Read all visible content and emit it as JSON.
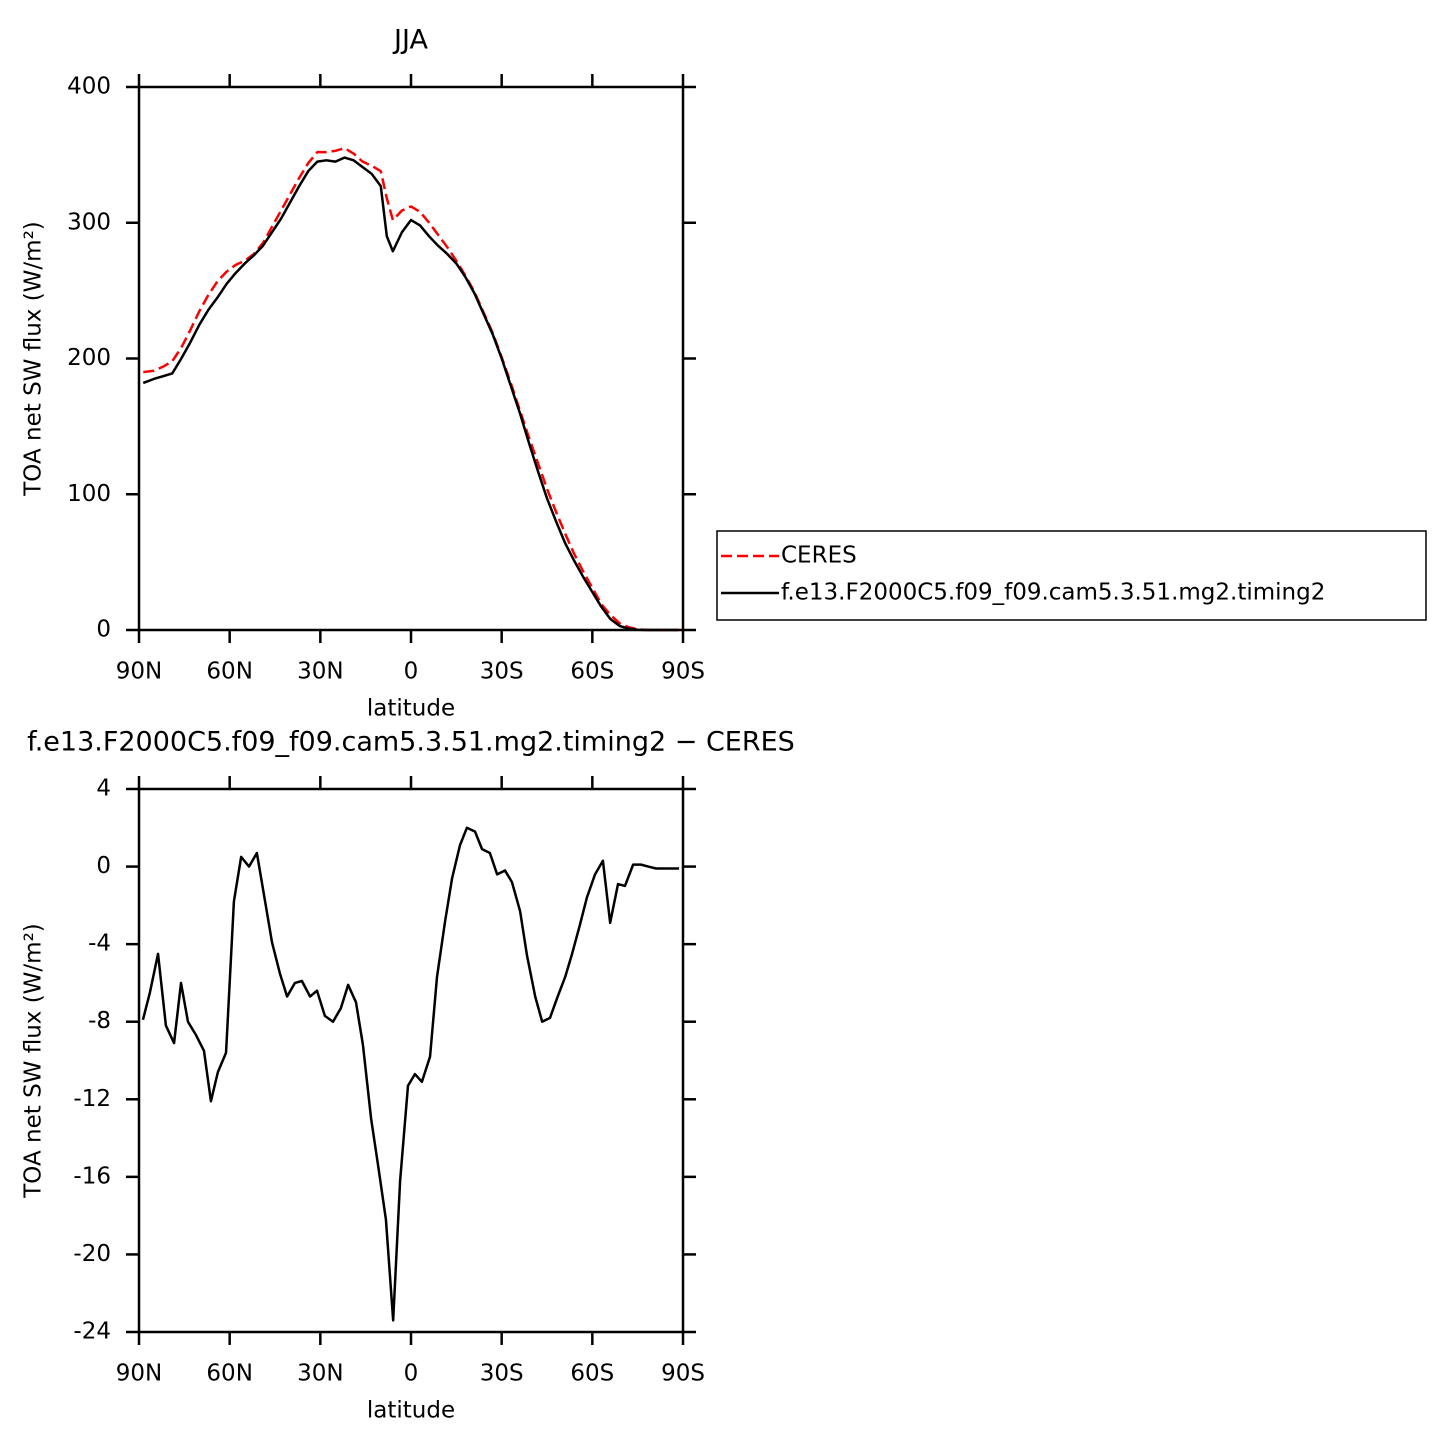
{
  "chart_data": [
    {
      "type": "line",
      "title": "JJA",
      "xlabel": "latitude",
      "ylabel": "TOA net SW flux (W/m²)",
      "x": [
        88.6,
        85,
        82,
        79,
        76,
        73,
        70,
        67,
        64,
        61,
        58,
        55,
        52,
        49,
        46,
        43,
        40,
        37,
        34,
        31,
        28,
        25,
        22,
        19,
        16,
        13,
        10,
        8,
        6,
        3,
        0,
        -3,
        -6,
        -9,
        -12,
        -15,
        -18,
        -21,
        -24,
        -27,
        -30,
        -33,
        -36,
        -39,
        -42,
        -45,
        -48,
        -51,
        -54,
        -57,
        -60,
        -63,
        -66,
        -69,
        -72,
        -75,
        -78,
        -81,
        -84,
        -87,
        -88.6
      ],
      "series": [
        {
          "name": "CERES",
          "color": "#ff0000",
          "linestyle": "dashed",
          "values": [
            190,
            191,
            194,
            198,
            208,
            221,
            235,
            247,
            257,
            264,
            269,
            272,
            277,
            285,
            297,
            309,
            321,
            333,
            344,
            352,
            352,
            353,
            355,
            351,
            345,
            342,
            338,
            318,
            302,
            309,
            312,
            308,
            300,
            291,
            282,
            272,
            261,
            249,
            234,
            219,
            201,
            182,
            162,
            142,
            123,
            104,
            87,
            71,
            56,
            43,
            31,
            19,
            11,
            5,
            2,
            0.5,
            0,
            0,
            0,
            0,
            0
          ]
        },
        {
          "name": "f.e13.F2000C5.f09_f09.cam5.3.51.mg2.timing2",
          "color": "#000000",
          "linestyle": "solid",
          "values": [
            182,
            185,
            187,
            189,
            200,
            212,
            225,
            236,
            245,
            255,
            263,
            270,
            276,
            283,
            293,
            303,
            315,
            327,
            338,
            345,
            346,
            345,
            348,
            346,
            341,
            336,
            327,
            290,
            279,
            293,
            302,
            298,
            290,
            283,
            277,
            270,
            260,
            248,
            233,
            218,
            200,
            180,
            160,
            138,
            117,
            97,
            80,
            64,
            51,
            39,
            28,
            17,
            8,
            3,
            1,
            0.2,
            0,
            0,
            0,
            0,
            0
          ]
        }
      ],
      "xlim": [
        90,
        -90
      ],
      "xticks": [
        {
          "value": 90,
          "label": "90N"
        },
        {
          "value": 60,
          "label": "60N"
        },
        {
          "value": 30,
          "label": "30N"
        },
        0,
        {
          "value": -30,
          "label": "30S"
        },
        {
          "value": -60,
          "label": "60S"
        },
        {
          "value": -90,
          "label": "90S"
        }
      ],
      "ylim": [
        0,
        400
      ],
      "yticks": [
        0,
        100,
        200,
        300,
        400
      ],
      "legend": "right"
    },
    {
      "type": "line",
      "title": "f.e13.F2000C5.f09_f09.cam5.3.51.mg2.timing2 − CERES",
      "xlabel": "latitude",
      "ylabel": "TOA net SW flux (W/m²)",
      "x": [
        88.7,
        86.4,
        83.7,
        81.1,
        78.4,
        76.1,
        73.8,
        71.1,
        68.5,
        66.2,
        63.9,
        61.2,
        58.6,
        56.2,
        53.6,
        51.0,
        48.6,
        46.0,
        43.4,
        41.0,
        38.4,
        36.1,
        33.4,
        31.1,
        28.5,
        25.8,
        23.2,
        20.8,
        18.2,
        15.9,
        13.2,
        10.9,
        8.3,
        5.9,
        3.6,
        1.0,
        -1.3,
        -3.6,
        -6.3,
        -8.6,
        -11.3,
        -13.6,
        -16.2,
        -18.5,
        -21.2,
        -23.5,
        -26.1,
        -28.5,
        -31.1,
        -33.4,
        -36.1,
        -38.4,
        -41.1,
        -43.4,
        -46.0,
        -48.3,
        -51.0,
        -53.3,
        -55.9,
        -58.2,
        -60.9,
        -63.5,
        -65.9,
        -68.5,
        -70.8,
        -73.5,
        -76.1,
        -78.5,
        -81.1,
        -83.4,
        -86.0,
        -88.7
      ],
      "series": [
        {
          "color": "#000000",
          "linestyle": "solid",
          "values": [
            -7.9,
            -6.5,
            -4.5,
            -8.2,
            -9.1,
            -6.0,
            -8.0,
            -8.7,
            -9.5,
            -12.1,
            -10.6,
            -9.6,
            -1.8,
            0.5,
            0.0,
            0.7,
            -1.5,
            -3.9,
            -5.5,
            -6.7,
            -6.0,
            -5.9,
            -6.7,
            -6.4,
            -7.7,
            -8.0,
            -7.3,
            -6.1,
            -7.0,
            -9.2,
            -13.0,
            -15.4,
            -18.2,
            -23.4,
            -16.2,
            -11.3,
            -10.7,
            -11.1,
            -9.8,
            -5.7,
            -2.8,
            -0.6,
            1.1,
            2.0,
            1.8,
            0.9,
            0.7,
            -0.4,
            -0.2,
            -0.8,
            -2.3,
            -4.6,
            -6.7,
            -8.0,
            -7.8,
            -6.8,
            -5.7,
            -4.5,
            -3.0,
            -1.6,
            -0.4,
            0.3,
            -2.9,
            -0.9,
            -1.0,
            0.1,
            0.1,
            0.0,
            -0.1,
            -0.1,
            -0.1,
            -0.1
          ]
        }
      ],
      "xlim": [
        90,
        -90
      ],
      "xticks": [
        {
          "value": 90,
          "label": "90N"
        },
        {
          "value": 60,
          "label": "60N"
        },
        {
          "value": 30,
          "label": "30N"
        },
        0,
        {
          "value": -30,
          "label": "30S"
        },
        {
          "value": -60,
          "label": "60S"
        },
        {
          "value": -90,
          "label": "90S"
        }
      ],
      "ylim": [
        -24,
        4
      ],
      "yticks": [
        -24,
        -20,
        -16,
        -12,
        -8,
        -4,
        0,
        4
      ]
    }
  ]
}
